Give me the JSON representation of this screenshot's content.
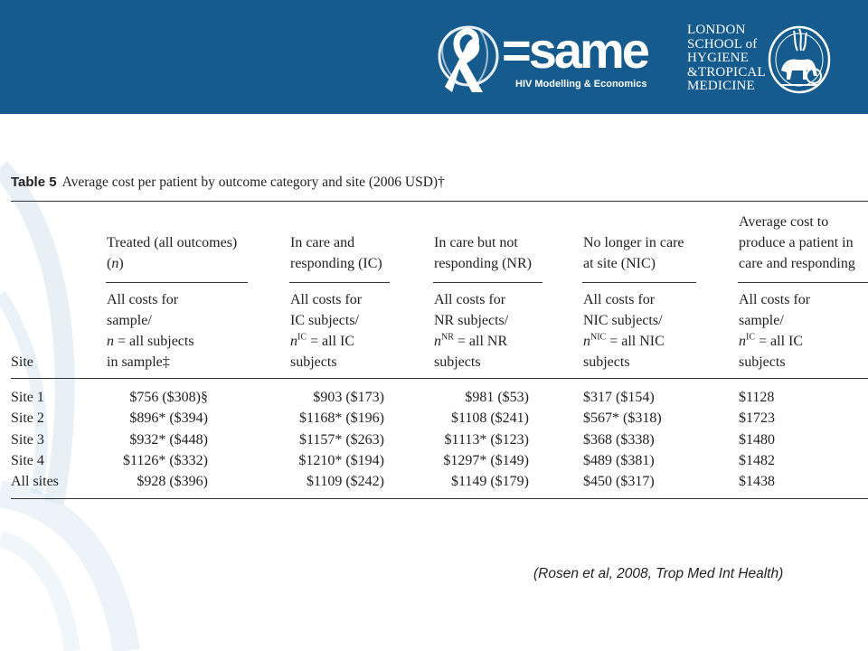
{
  "header": {
    "same_logo": "=same",
    "same_subtitle": "HIV Modelling & Economics",
    "lshtm_lines": [
      "LONDON",
      "SCHOOL of",
      "HYGIENE",
      "&TROPICAL",
      "MEDICINE"
    ],
    "banner_color": "#155b8d"
  },
  "table": {
    "label": "Table 5",
    "title": "Average cost per patient by outcome category and site (2006 USD)†",
    "site_header": "Site",
    "columns": [
      {
        "group": [
          "Treated (all outcomes)",
          "(n)"
        ],
        "sub": [
          "All costs for",
          "sample/",
          "n = all subjects",
          "in sample‡"
        ]
      },
      {
        "group": [
          "In care and",
          "responding (IC)"
        ],
        "sub": [
          "All costs for",
          "IC subjects/",
          "nIC = all IC",
          "subjects"
        ]
      },
      {
        "group": [
          "In care but not",
          "responding (NR)"
        ],
        "sub": [
          "All costs for",
          "NR subjects/",
          "nNR = all NR",
          "subjects"
        ]
      },
      {
        "group": [
          "No longer in care",
          "at site (NIC)"
        ],
        "sub": [
          "All costs for",
          "NIC subjects/",
          "nNIC = all NIC",
          "subjects"
        ]
      },
      {
        "group": [
          "Average cost to",
          "produce a patient in",
          "care and responding"
        ],
        "sub": [
          "All costs for",
          "sample/",
          "nIC = all IC",
          "subjects"
        ]
      }
    ],
    "rows": [
      {
        "site": "Site 1",
        "values": [
          "$756 ($308)§",
          "$903 ($173)",
          "$981 ($53)",
          "$317 ($154)",
          "$1128"
        ]
      },
      {
        "site": "Site 2",
        "values": [
          "$896* ($394)",
          "$1168* ($196)",
          "$1108 ($241)",
          "$567* ($318)",
          "$1723"
        ]
      },
      {
        "site": "Site 3",
        "values": [
          "$932* ($448)",
          "$1157* ($263)",
          "$1113* ($123)",
          "$368 ($338)",
          "$1480"
        ]
      },
      {
        "site": "Site 4",
        "values": [
          "$1126* ($332)",
          "$1210* ($194)",
          "$1297* ($149)",
          "$489 ($381)",
          "$1482"
        ]
      },
      {
        "site": "All sites",
        "values": [
          "$928 ($396)",
          "$1109 ($242)",
          "$1149 ($179)",
          "$450 ($317)",
          "$1438"
        ]
      }
    ]
  },
  "citation": "(Rosen et al, 2008, Trop Med Int Health)"
}
